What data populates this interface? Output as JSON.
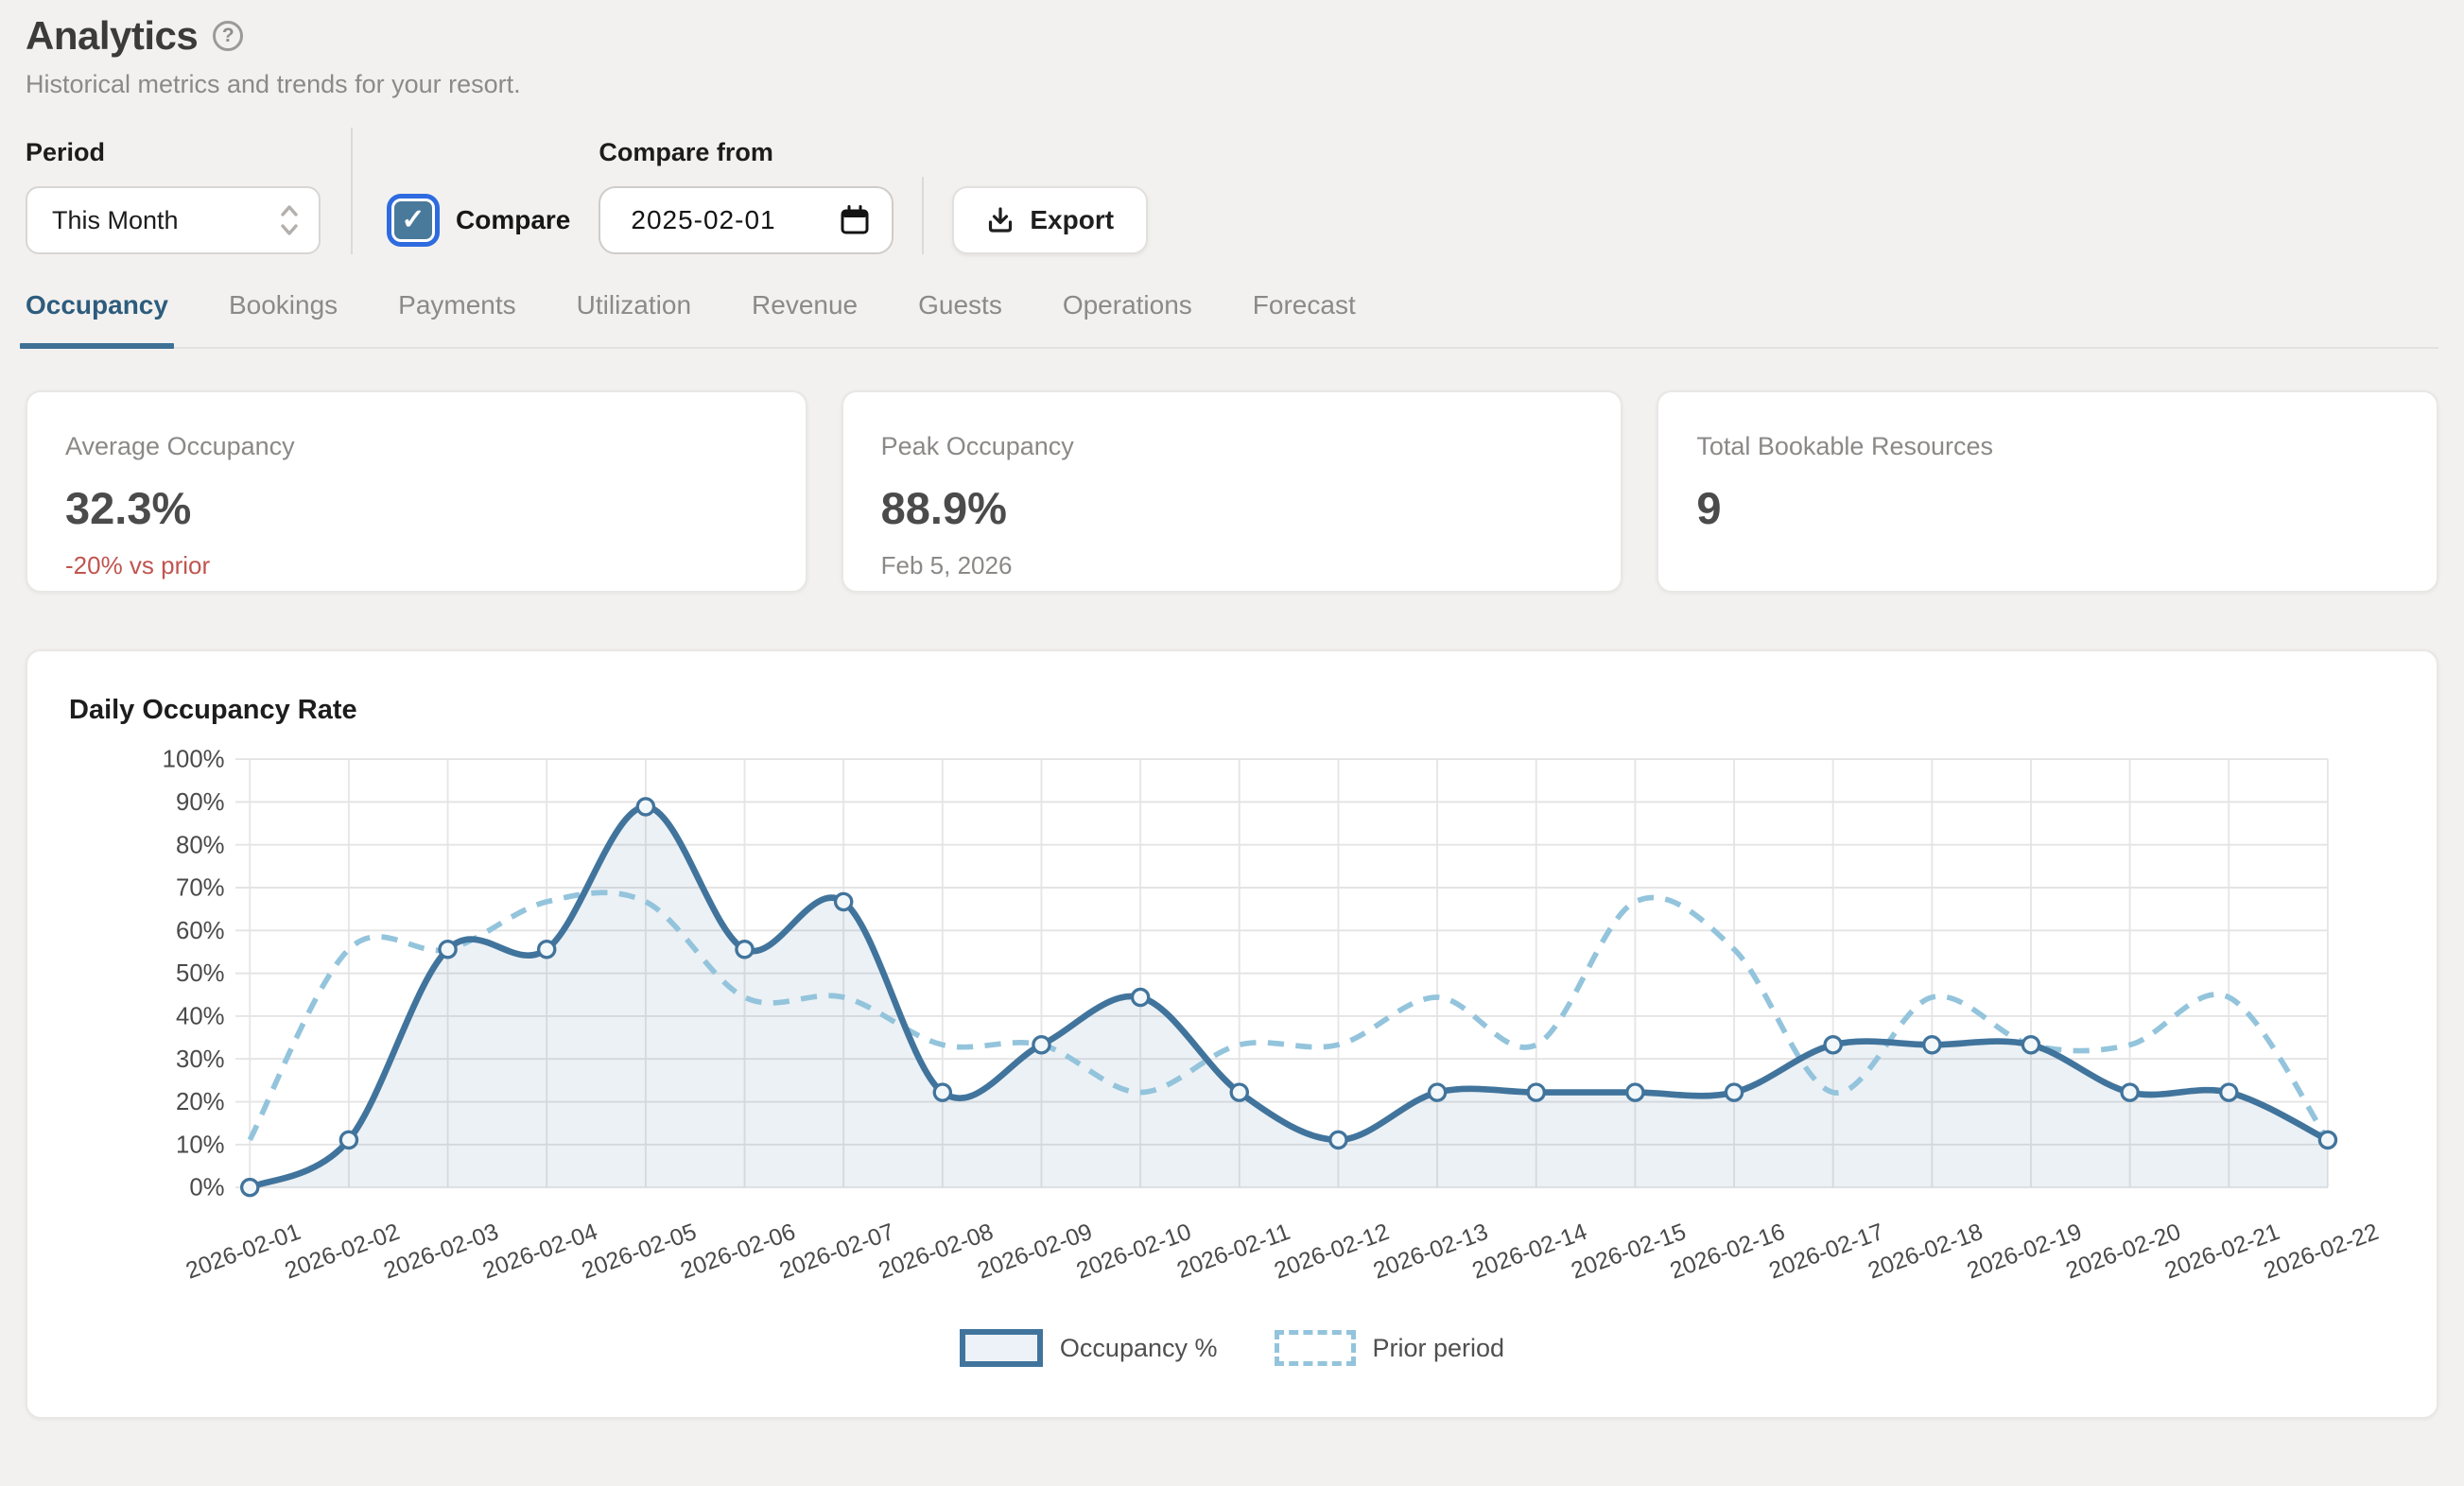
{
  "header": {
    "title": "Analytics",
    "subtitle": "Historical metrics and trends for your resort."
  },
  "controls": {
    "period": {
      "label": "Period",
      "value": "This Month"
    },
    "compare": {
      "checkbox_label": "Compare",
      "checked": true,
      "from_label": "Compare from",
      "date_value": "2025-02-01"
    },
    "export": {
      "label": "Export"
    }
  },
  "tabs": {
    "active_index": 0,
    "items": [
      {
        "label": "Occupancy"
      },
      {
        "label": "Bookings"
      },
      {
        "label": "Payments"
      },
      {
        "label": "Utilization"
      },
      {
        "label": "Revenue"
      },
      {
        "label": "Guests"
      },
      {
        "label": "Operations"
      },
      {
        "label": "Forecast"
      }
    ]
  },
  "stats": [
    {
      "label": "Average Occupancy",
      "value": "32.3%",
      "delta": "-20% vs prior"
    },
    {
      "label": "Peak Occupancy",
      "value": "88.9%",
      "sub": "Feb 5, 2026"
    },
    {
      "label": "Total Bookable Resources",
      "value": "9"
    }
  ],
  "colors": {
    "accent_blue": "#3f7096",
    "active_tab_text": "#2d5c7d",
    "negative_delta": "#c0554f",
    "checkbox_fill": "#4a7a9b",
    "focus_ring": "#2e6be0",
    "page_bg": "#f2f1ef",
    "grid_line": "#e6e6e6",
    "axis_text": "#4a4a4a"
  },
  "chart_data": {
    "type": "line",
    "title": "Daily Occupancy Rate",
    "x": [
      "2026-02-01",
      "2026-02-02",
      "2026-02-03",
      "2026-02-04",
      "2026-02-05",
      "2026-02-06",
      "2026-02-07",
      "2026-02-08",
      "2026-02-09",
      "2026-02-10",
      "2026-02-11",
      "2026-02-12",
      "2026-02-13",
      "2026-02-14",
      "2026-02-15",
      "2026-02-16",
      "2026-02-17",
      "2026-02-18",
      "2026-02-19",
      "2026-02-20",
      "2026-02-21",
      "2026-02-22"
    ],
    "series": [
      {
        "name": "Occupancy %",
        "style": "solid",
        "color": "#41749c",
        "area_fill": "rgba(65,116,156,0.10)",
        "markers": true,
        "values": [
          0,
          11.1,
          55.6,
          55.6,
          88.9,
          55.6,
          66.7,
          22.2,
          33.3,
          44.4,
          22.2,
          11.1,
          22.2,
          22.2,
          22.2,
          22.2,
          33.3,
          33.3,
          33.3,
          22.2,
          22.2,
          11.1
        ]
      },
      {
        "name": "Prior period",
        "style": "dashed",
        "color": "#93c4dc",
        "markers": false,
        "values": [
          11.1,
          55.6,
          55.6,
          66.7,
          66.7,
          44.4,
          44.4,
          33.3,
          33.3,
          22.2,
          33.3,
          33.3,
          44.4,
          33.3,
          66.7,
          55.6,
          22.2,
          44.4,
          33.3,
          33.3,
          44.4,
          11.1
        ]
      }
    ],
    "ylim": [
      0,
      100
    ],
    "ytick_step": 10,
    "ytick_suffix": "%",
    "grid": true,
    "legend_position": "bottom"
  }
}
